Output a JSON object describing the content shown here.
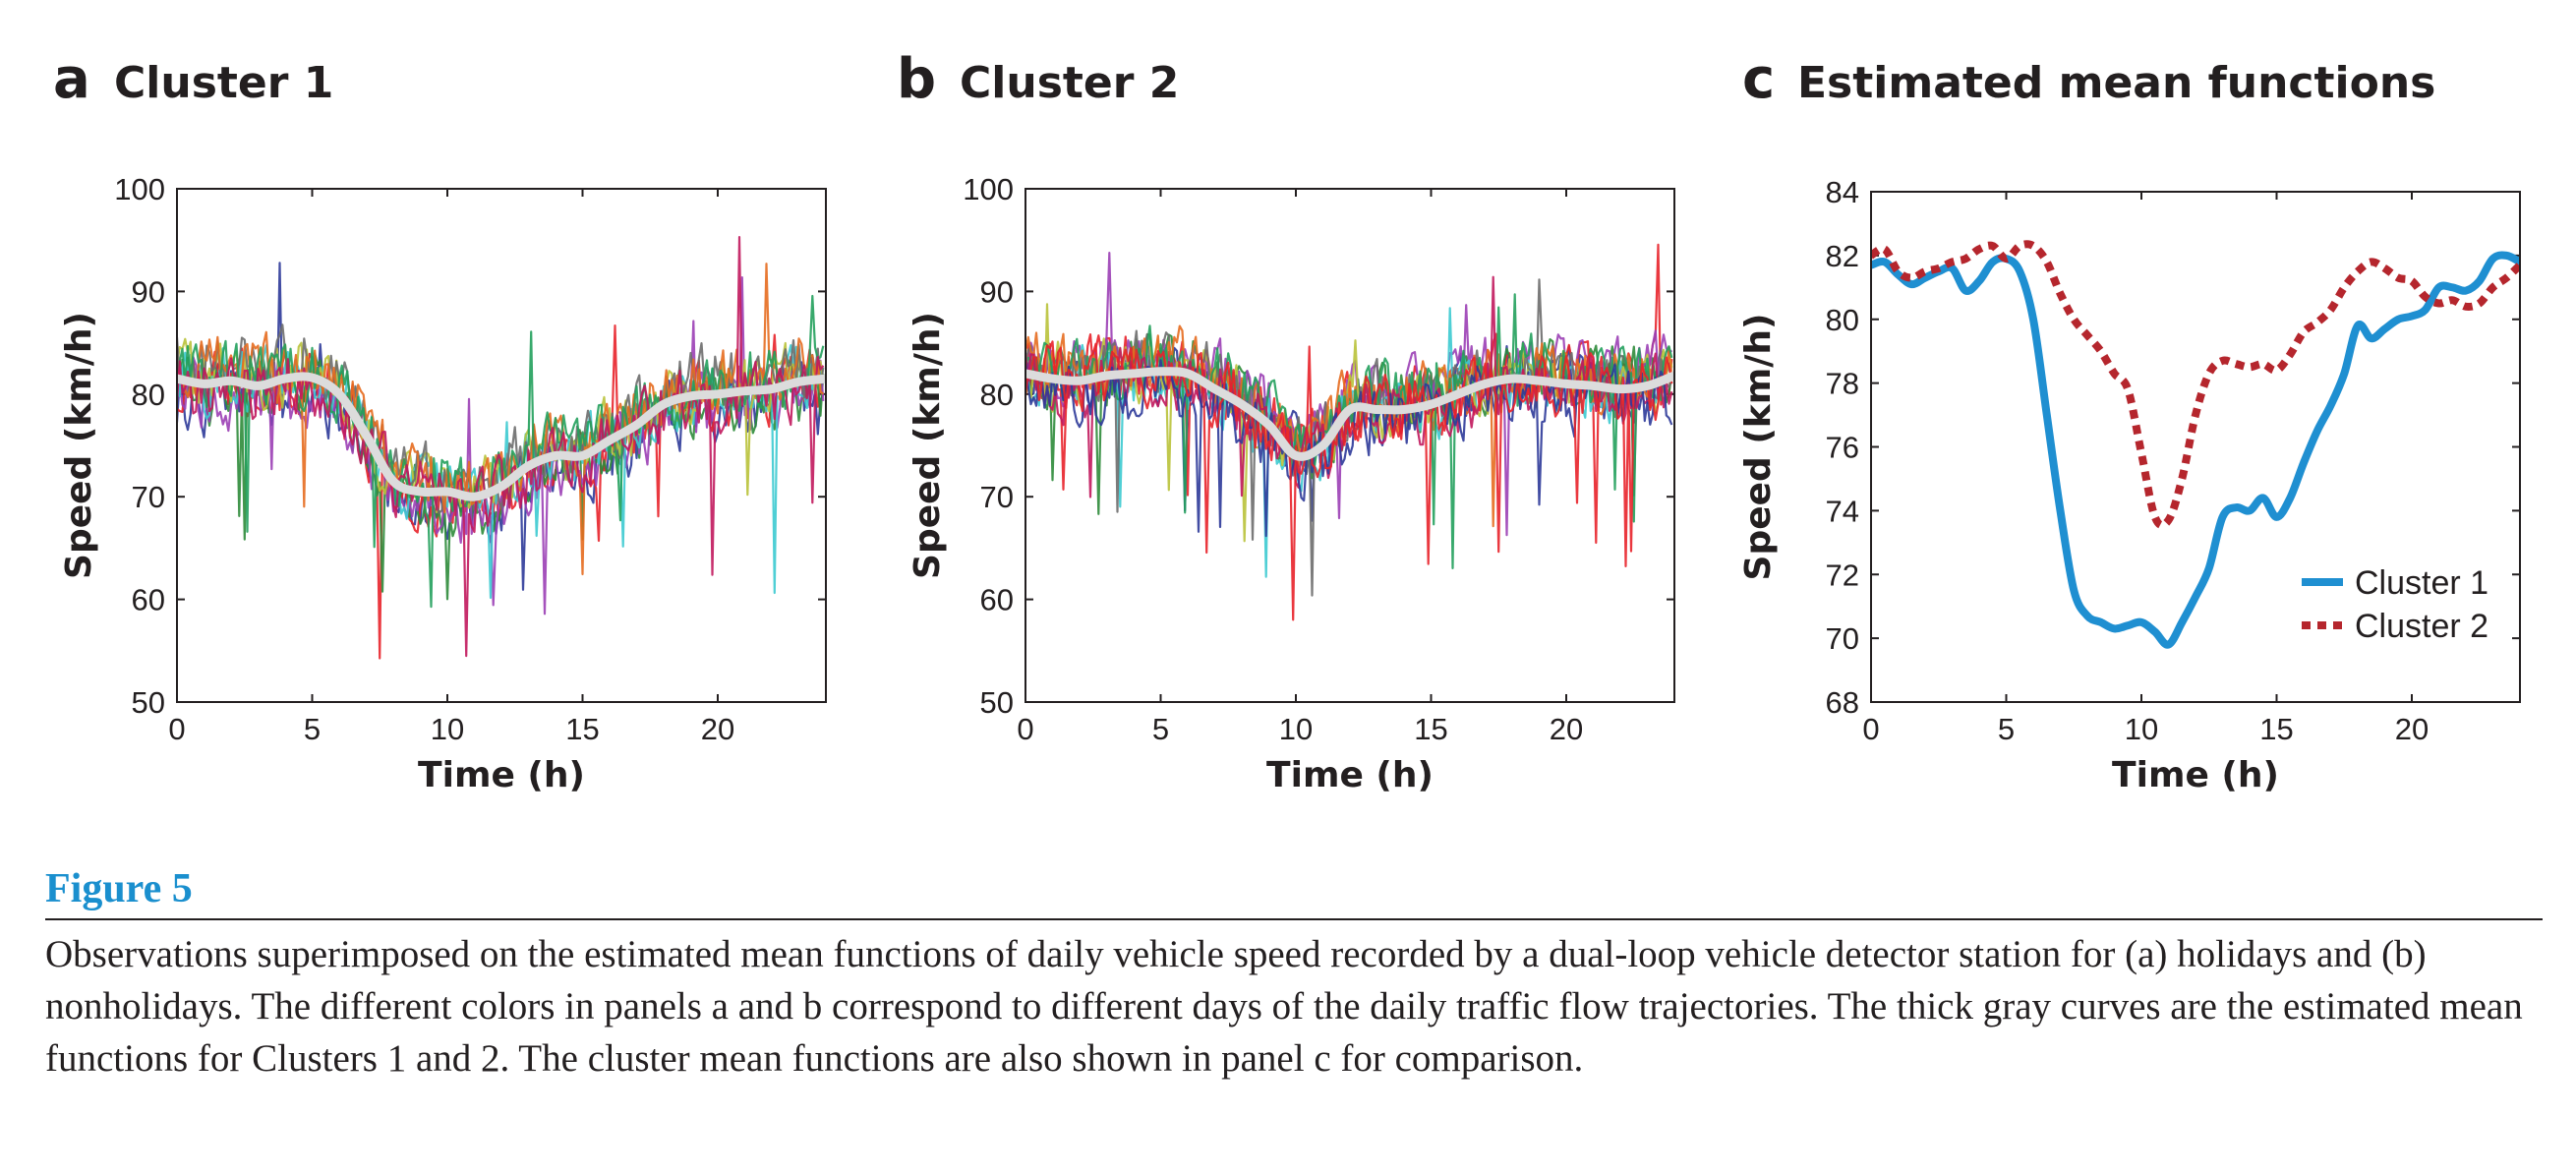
{
  "panels": [
    {
      "letter": "a",
      "title": "Cluster 1"
    },
    {
      "letter": "b",
      "title": "Cluster 2"
    },
    {
      "letter": "c",
      "title": "Estimated mean functions"
    }
  ],
  "chart_data": [
    {
      "type": "line",
      "title": "Cluster 1",
      "xlabel": "Time (h)",
      "ylabel": "Speed (km/h)",
      "xlim": [
        0,
        24
      ],
      "ylim": [
        50,
        100
      ],
      "xticks": [
        0,
        5,
        10,
        15,
        20
      ],
      "yticks": [
        50,
        60,
        70,
        80,
        90,
        100
      ],
      "series_colors": [
        "#2d3a99",
        "#e8222a",
        "#2e8b3a",
        "#9b3fb5",
        "#3ccad0",
        "#b9c23a",
        "#6d6d6d",
        "#e56b1f",
        "#22a05c",
        "#c1185d"
      ],
      "observation_days": 10,
      "mean": {
        "color": "#dcdcdc",
        "x": [
          0,
          1,
          2,
          3,
          4,
          5,
          6,
          7,
          8,
          9,
          10,
          11,
          12,
          13,
          14,
          15,
          16,
          17,
          18,
          19,
          20,
          21,
          22,
          23,
          24
        ],
        "y": [
          81.5,
          81.0,
          81.3,
          80.8,
          81.5,
          81.6,
          80.0,
          76.0,
          71.5,
          70.5,
          70.5,
          70.0,
          71.0,
          73.0,
          74.0,
          74.0,
          75.5,
          77.0,
          79.0,
          79.8,
          80.0,
          80.3,
          80.5,
          81.2,
          81.5
        ]
      }
    },
    {
      "type": "line",
      "title": "Cluster 2",
      "xlabel": "Time (h)",
      "ylabel": "Speed (km/h)",
      "xlim": [
        0,
        24
      ],
      "ylim": [
        50,
        100
      ],
      "xticks": [
        0,
        5,
        10,
        15,
        20
      ],
      "yticks": [
        50,
        60,
        70,
        80,
        90,
        100
      ],
      "series_colors": [
        "#2d3a99",
        "#e8222a",
        "#2e8b3a",
        "#9b3fb5",
        "#3ccad0",
        "#b9c23a",
        "#6d6d6d",
        "#e56b1f",
        "#22a05c",
        "#c1185d"
      ],
      "observation_days": 12,
      "mean": {
        "color": "#dcdcdc",
        "x": [
          0,
          1,
          2,
          3,
          4,
          5,
          6,
          7,
          8,
          9,
          10,
          11,
          12,
          13,
          14,
          15,
          16,
          17,
          18,
          19,
          20,
          21,
          22,
          23,
          24
        ],
        "y": [
          82.0,
          81.5,
          81.3,
          81.8,
          82.0,
          82.2,
          82.0,
          80.5,
          79.0,
          77.0,
          74.0,
          75.0,
          78.5,
          78.5,
          78.5,
          79.0,
          80.0,
          81.0,
          81.5,
          81.3,
          81.0,
          80.8,
          80.5,
          80.8,
          81.8
        ]
      }
    },
    {
      "type": "line",
      "title": "Estimated mean functions",
      "xlabel": "Time (h)",
      "ylabel": "Speed (km/h)",
      "xlim": [
        0,
        24
      ],
      "ylim": [
        68,
        84
      ],
      "xticks": [
        0,
        5,
        10,
        15,
        20
      ],
      "yticks": [
        68,
        70,
        72,
        74,
        76,
        78,
        80,
        82,
        84
      ],
      "legend": "bottom-right",
      "series": [
        {
          "name": "Cluster 1",
          "color": "#1f8fd1",
          "style": "solid",
          "x": [
            0,
            0.5,
            1,
            1.5,
            2,
            2.5,
            3,
            3.5,
            4,
            4.5,
            5,
            5.5,
            6,
            6.5,
            7,
            7.5,
            8,
            8.5,
            9,
            9.5,
            10,
            10.5,
            11,
            11.5,
            12,
            12.5,
            13,
            13.5,
            14,
            14.5,
            15,
            15.5,
            16,
            16.5,
            17,
            17.5,
            18,
            18.5,
            19,
            19.5,
            20,
            20.5,
            21,
            21.5,
            22,
            22.5,
            23,
            23.5,
            24
          ],
          "y": [
            81.7,
            81.8,
            81.4,
            81.1,
            81.3,
            81.5,
            81.6,
            80.9,
            81.2,
            81.8,
            81.9,
            81.5,
            80.0,
            77.0,
            74.0,
            71.5,
            70.7,
            70.5,
            70.3,
            70.4,
            70.5,
            70.2,
            69.8,
            70.5,
            71.3,
            72.2,
            73.8,
            74.1,
            74.0,
            74.4,
            73.8,
            74.4,
            75.5,
            76.5,
            77.3,
            78.3,
            79.8,
            79.4,
            79.7,
            80.0,
            80.1,
            80.3,
            81.0,
            81.0,
            80.9,
            81.2,
            81.9,
            82.0,
            81.8
          ]
        },
        {
          "name": "Cluster 2",
          "color": "#b5262d",
          "style": "dotted",
          "x": [
            0,
            0.5,
            1,
            1.5,
            2,
            2.5,
            3,
            3.5,
            4,
            4.5,
            5,
            5.5,
            6,
            6.5,
            7,
            7.5,
            8,
            8.5,
            9,
            9.5,
            10,
            10.5,
            11,
            11.5,
            12,
            12.5,
            13,
            13.5,
            14,
            14.5,
            15,
            15.5,
            16,
            16.5,
            17,
            17.5,
            18,
            18.5,
            19,
            19.5,
            20,
            20.5,
            21,
            21.5,
            22,
            22.5,
            23,
            23.5,
            24
          ],
          "y": [
            82.0,
            82.2,
            81.5,
            81.3,
            81.5,
            81.6,
            81.8,
            81.9,
            82.2,
            82.3,
            81.9,
            82.3,
            82.3,
            81.8,
            80.8,
            80.0,
            79.5,
            79.0,
            78.3,
            77.8,
            75.8,
            73.8,
            73.7,
            75.0,
            77.0,
            78.3,
            78.7,
            78.6,
            78.5,
            78.6,
            78.4,
            78.9,
            79.6,
            79.9,
            80.3,
            81.0,
            81.5,
            81.8,
            81.6,
            81.3,
            81.2,
            80.7,
            80.5,
            80.6,
            80.4,
            80.5,
            81.0,
            81.3,
            81.7
          ]
        }
      ]
    }
  ],
  "caption": {
    "title": "Figure 5",
    "text": "Observations superimposed on the estimated mean functions of daily vehicle speed recorded by a dual-loop vehicle detector station for (a) holidays and (b) nonholidays. The different colors in panels a and b correspond to different days of the daily traffic flow trajectories. The thick gray curves are the estimated mean functions for Clusters 1 and 2. The cluster mean functions are also shown in panel c for comparison."
  }
}
